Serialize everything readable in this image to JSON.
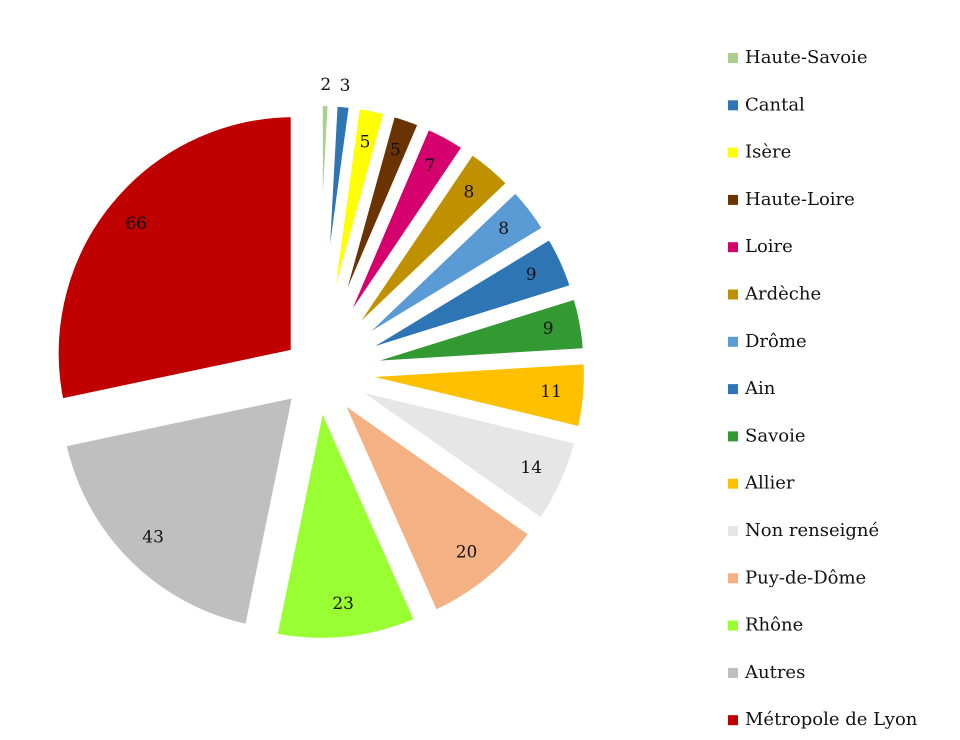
{
  "chart_data": {
    "type": "pie",
    "categories": [
      "Haute-Savoie",
      "Cantal",
      "Isère",
      "Haute-Loire",
      "Loire",
      "Ardèche",
      "Drôme",
      "Ain",
      "Savoie",
      "Allier",
      "Non renseigné",
      "Puy-de-Dôme",
      "Rhône",
      "Autres",
      "Métropole de Lyon"
    ],
    "values": [
      2,
      3,
      5,
      5,
      7,
      8,
      8,
      9,
      9,
      11,
      14,
      20,
      23,
      43,
      66
    ],
    "colors": [
      "#a9d18e",
      "#2e75b6",
      "#ffff00",
      "#6b3300",
      "#d5006d",
      "#bf9000",
      "#5b9bd5",
      "#2e75b6",
      "#339933",
      "#ffc000",
      "#e6e6e6",
      "#f4b183",
      "#99ff33",
      "#bfbfbf",
      "#c00000"
    ],
    "legend": "right"
  }
}
